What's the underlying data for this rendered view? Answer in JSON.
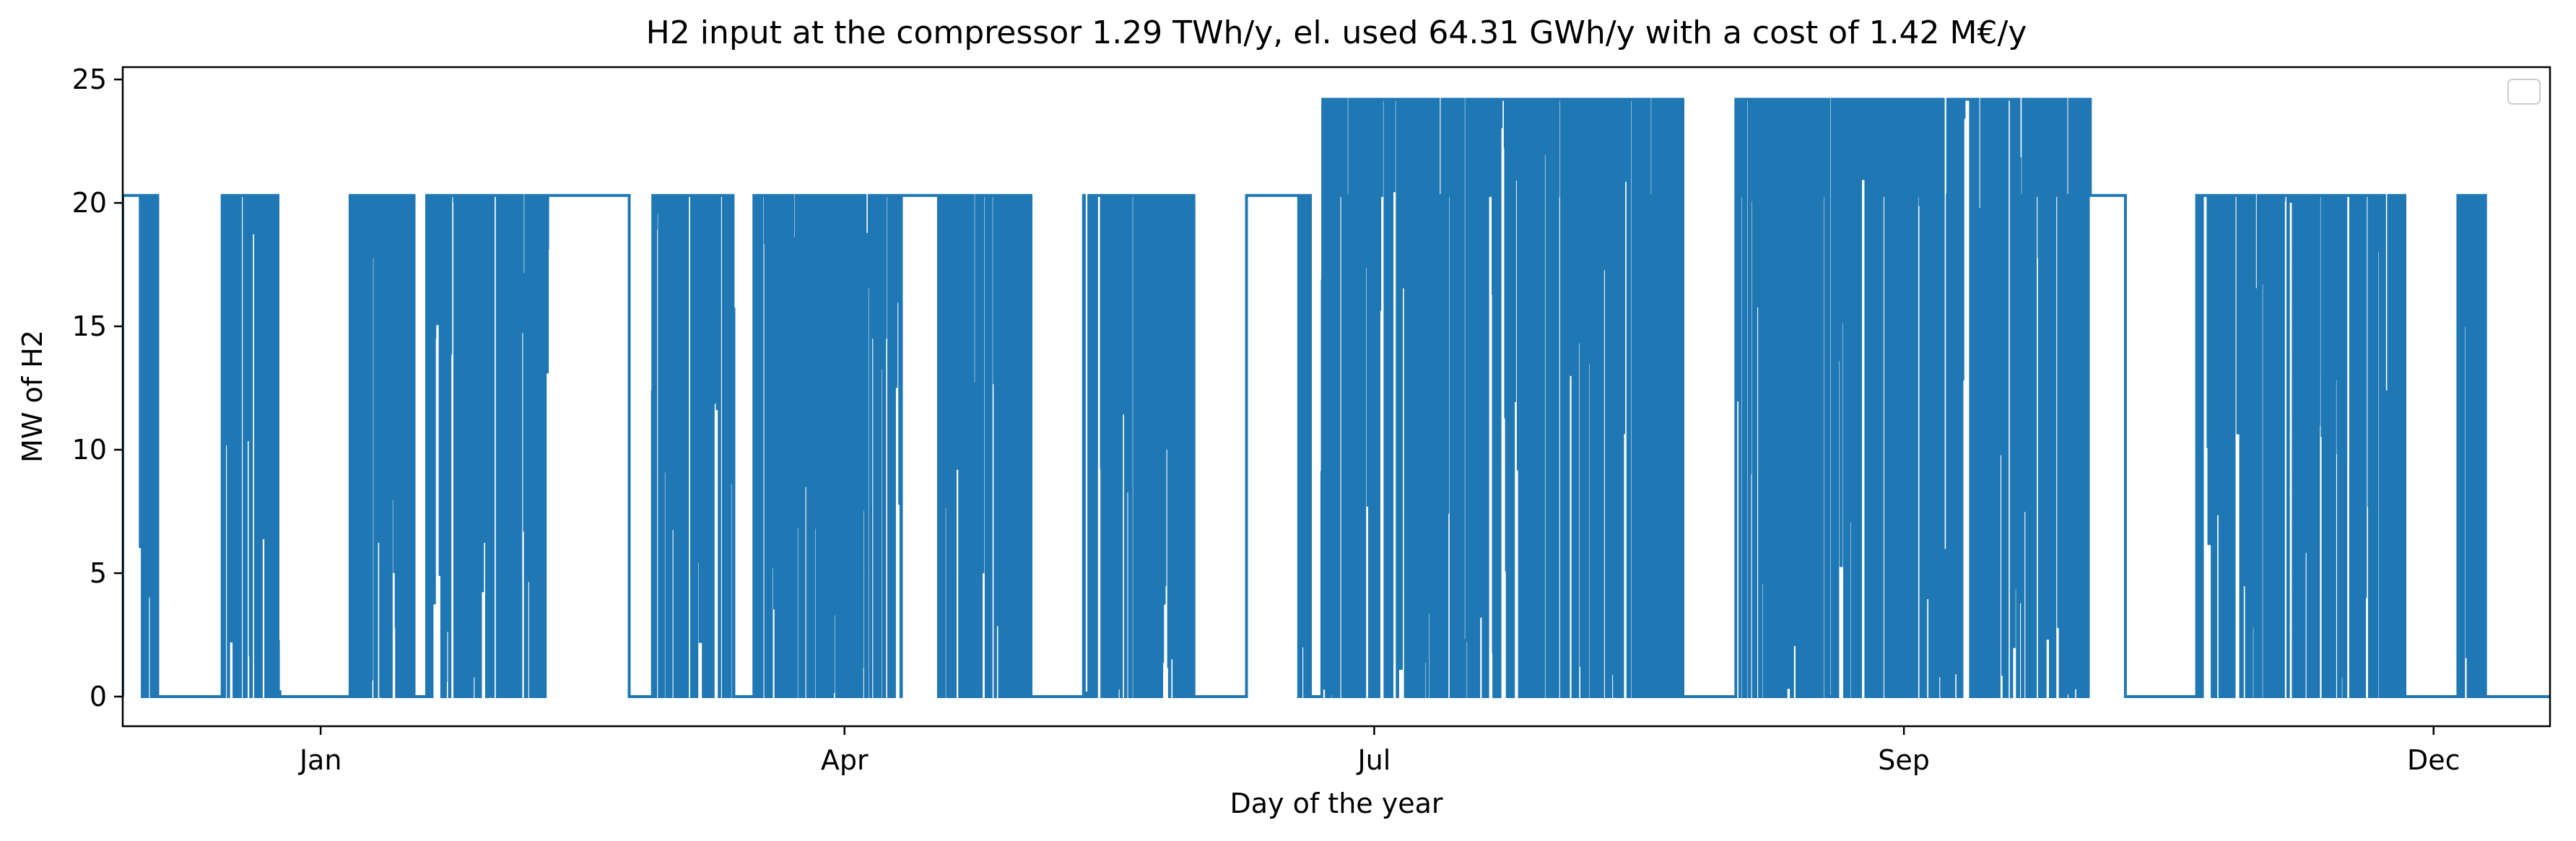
{
  "chart_data": {
    "type": "line",
    "title": "H2 input at the compressor 1.29 TWh/y, el. used 64.31 GWh/y with a cost of 1.42 M€/y",
    "xlabel": "Day of the year",
    "ylabel": "MW of H2",
    "xlim": [
      -34,
      383
    ],
    "ylim": [
      -1.2,
      25.5
    ],
    "yticks": [
      0,
      5,
      10,
      15,
      20,
      25
    ],
    "xticks": [
      {
        "label": "Jan",
        "day": 0
      },
      {
        "label": "Apr",
        "day": 90
      },
      {
        "label": "Jul",
        "day": 181
      },
      {
        "label": "Sep",
        "day": 272
      },
      {
        "label": "Dec",
        "day": 363
      }
    ],
    "grid": false,
    "legend": {
      "position": "top-right",
      "entries": []
    },
    "series_color": "#1f77b4",
    "levels": {
      "high": 24.2,
      "standard": 20.3,
      "off": 0
    },
    "series": [
      {
        "note_intervals": "active operating periods, days of the year",
        "intervals": [
          {
            "start": -34,
            "end": -31,
            "level": 20.3
          },
          {
            "start": -31,
            "end": -28,
            "level": 20.3
          },
          {
            "start": -17,
            "end": -7,
            "level": 20.3
          },
          {
            "start": 5,
            "end": 16,
            "level": 20.3
          },
          {
            "start": 18,
            "end": 50,
            "level": 20.3
          },
          {
            "start": 57,
            "end": 71,
            "level": 20.3
          },
          {
            "start": 74,
            "end": 87,
            "level": 20.3
          },
          {
            "start": 87,
            "end": 122,
            "level": 20.3
          },
          {
            "start": 131,
            "end": 150,
            "level": 20.3
          },
          {
            "start": 160,
            "end": 170,
            "level": 20.3
          },
          {
            "start": 172,
            "end": 234,
            "level": 24.2
          },
          {
            "start": 243,
            "end": 306,
            "level": 24.2
          },
          {
            "start": 322,
            "end": 358,
            "level": 20.3
          },
          {
            "start": 367,
            "end": 372,
            "level": 20.3
          }
        ],
        "note_flat_segments": "sustained plateaus",
        "flat_segments": [
          {
            "start": -34,
            "end": -31,
            "level": 20.3
          },
          {
            "start": 39,
            "end": 53,
            "level": 20.3
          },
          {
            "start": 100,
            "end": 106,
            "level": 20.3
          },
          {
            "start": 159,
            "end": 168,
            "level": 20.3
          },
          {
            "start": 304,
            "end": 310,
            "level": 20.3
          }
        ],
        "note_idle": "idle stretches at 0 MW",
        "idle_segments": [
          {
            "start": -24,
            "end": -17
          },
          {
            "start": -7,
            "end": 5
          },
          {
            "start": 53,
            "end": 57
          },
          {
            "start": 71,
            "end": 74
          },
          {
            "start": 122,
            "end": 131
          },
          {
            "start": 150,
            "end": 160
          },
          {
            "start": 234,
            "end": 243
          },
          {
            "start": 306,
            "end": 322
          },
          {
            "start": 358,
            "end": 367
          },
          {
            "start": 375,
            "end": 383
          }
        ]
      }
    ]
  }
}
